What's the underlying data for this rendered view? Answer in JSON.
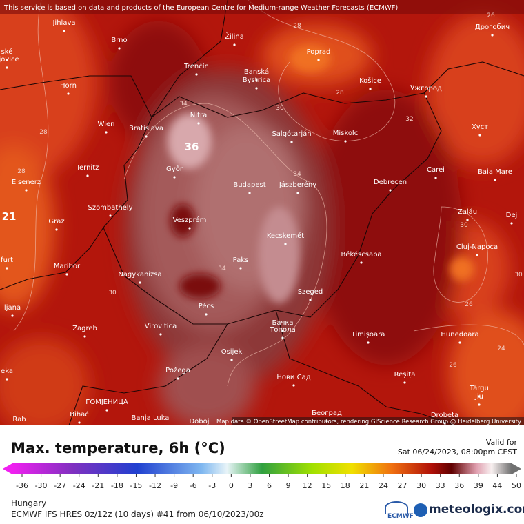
{
  "attribution_banner": "This service is based on data and products of the European Centre for Medium-range Weather Forecasts (ECMWF)",
  "map_credit": "Map data © OpenStreetMap contributors, rendering GIScience Research Group @ Heidelberg University",
  "cities": [
    "Jihlava",
    "Brno",
    "Žilina",
    "Poprad",
    "Дрогобич",
    "ské",
    "ějovice",
    "Trenčín",
    "Banská",
    "Bystrica",
    "Košice",
    "Ужгород",
    "Horn",
    "Nitra",
    "Wien",
    "Bratislava",
    "Salgótarján",
    "Miskolc",
    "Хуст",
    "Ternitz",
    "Győr",
    "Carei",
    "Baia Mare",
    "Eisenerz",
    "Budapest",
    "Jászberény",
    "Debrecen",
    "Szombathely",
    "Zalău",
    "Graz",
    "Veszprém",
    "Dej",
    "Kecskemét",
    "Cluj-Napoca",
    "furt",
    "Békéscsaba",
    "Maribor",
    "Paks",
    "Nagykanizsa",
    "Szeged",
    "ljana",
    "Pécs",
    "Zagreb",
    "Virovitica",
    "Бачка",
    "Топола",
    "Timișoara",
    "Hunedoara",
    "Osijek",
    "Požega",
    "Нови Сад",
    "Reșița",
    "eka",
    "Târgu",
    "Jiu",
    "ГОМЈЕНИЦА",
    "Bihać",
    "Banja Luka",
    "Doboj",
    "Београд",
    "Drobeta",
    "Rab"
  ],
  "contour_labels": [
    "26",
    "28",
    "28",
    "30",
    "32",
    "28",
    "28",
    "34",
    "36",
    "34",
    "21",
    "30",
    "34",
    "30",
    "26",
    "30",
    "24",
    "26"
  ],
  "legend": {
    "title": "Max. temperature, 6h (°C)",
    "valid_label": "Valid for",
    "valid_time": "Sat 06/24/2023, 08:00pm CEST",
    "scale": [
      -36,
      -30,
      -27,
      -24,
      -21,
      -18,
      -15,
      -12,
      -9,
      -6,
      -3,
      0,
      3,
      6,
      9,
      12,
      15,
      18,
      21,
      24,
      27,
      30,
      33,
      36,
      39,
      44,
      50
    ]
  },
  "footer": {
    "region": "Hungary",
    "model": "ECMWF IFS HRES 0z/12z (10 days) #41 from  06/10/2023/00z",
    "ecmwf": "ECMWF",
    "brand": "meteologix.com"
  }
}
